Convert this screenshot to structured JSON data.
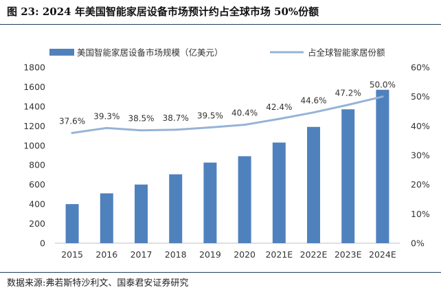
{
  "title": "图 23:  2024 年美国智能家居设备市场预计约占全球市场 50%份额",
  "source": "数据来源:弗若斯特沙利文、国泰君安证券研究",
  "chart_data": {
    "type": "bar+line",
    "categories": [
      "2015",
      "2016",
      "2017",
      "2018",
      "2019",
      "2020",
      "2021E",
      "2022E",
      "2023E",
      "2024E"
    ],
    "series": [
      {
        "name": "美国智能家居设备市场规模（亿美元）",
        "type": "bar",
        "axis": "left",
        "color": "#4f81bd",
        "values": [
          400,
          510,
          600,
          705,
          825,
          890,
          1030,
          1190,
          1370,
          1570
        ]
      },
      {
        "name": "占全球智能家居份额",
        "type": "line",
        "axis": "right",
        "color": "#95b3d7",
        "values": [
          37.6,
          39.3,
          38.5,
          38.7,
          39.5,
          40.4,
          42.4,
          44.6,
          47.2,
          50.0
        ],
        "labels": [
          "37.6%",
          "39.3%",
          "38.5%",
          "38.7%",
          "39.5%",
          "40.4%",
          "42.4%",
          "44.6%",
          "47.2%",
          "50.0%"
        ]
      }
    ],
    "y_left": {
      "min": 0,
      "max": 1800,
      "ticks": [
        "0",
        "200",
        "400",
        "600",
        "800",
        "1000",
        "1200",
        "1400",
        "1600",
        "1800"
      ]
    },
    "y_right": {
      "min": 0,
      "max": 60,
      "ticks": [
        "0%",
        "10%",
        "20%",
        "30%",
        "40%",
        "50%",
        "60%"
      ]
    },
    "grid": false,
    "legend_position": "top"
  }
}
